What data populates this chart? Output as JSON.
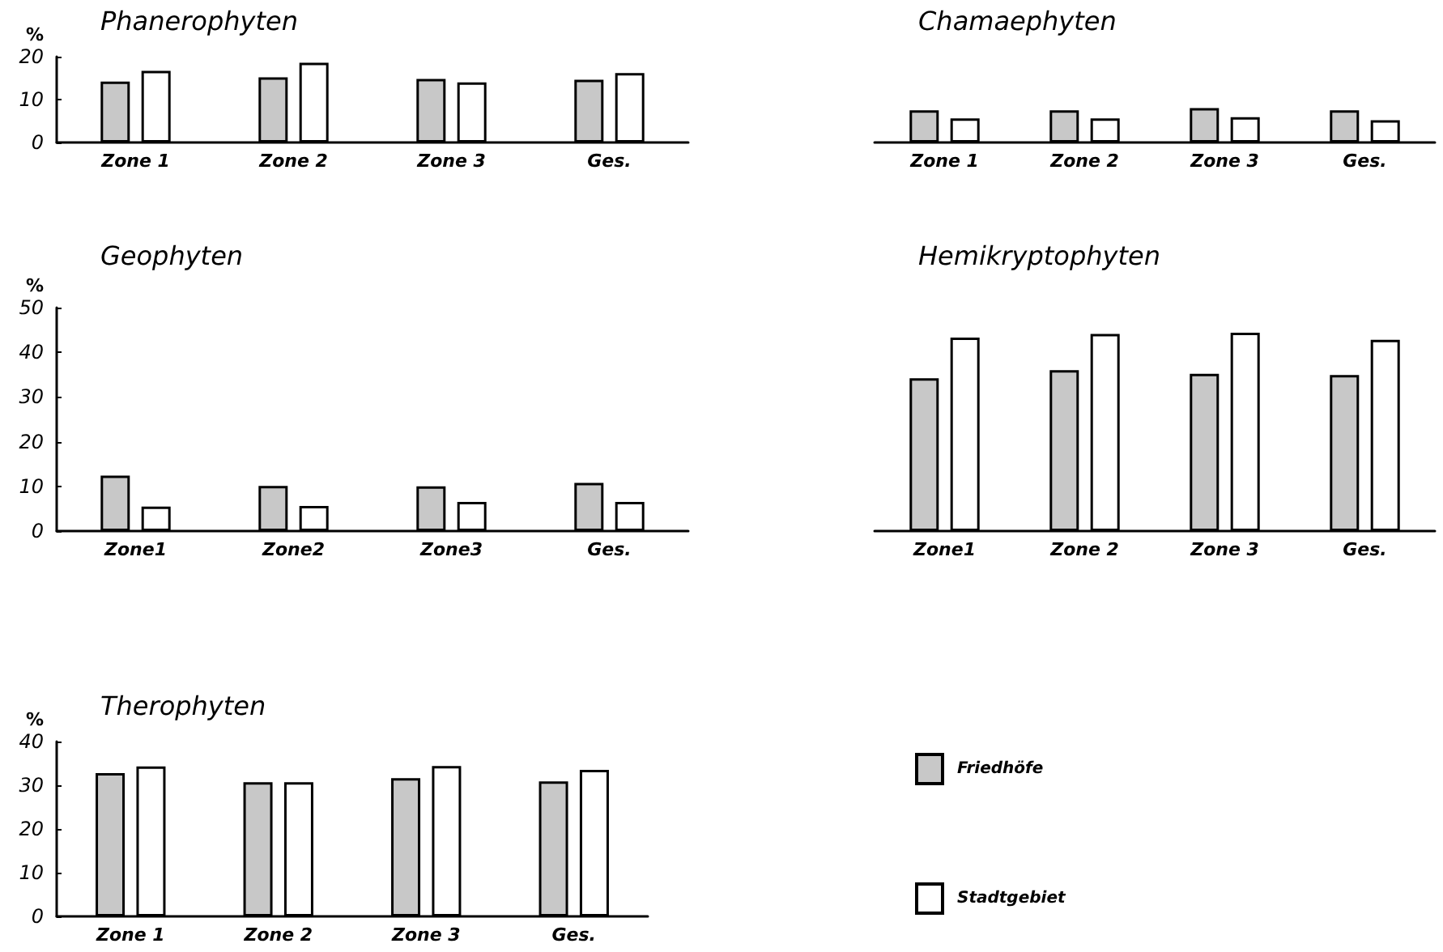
{
  "chart_data": [
    {
      "type": "bar",
      "title": "Phanerophyten",
      "ylabel": "%",
      "categories": [
        "Zone 1",
        "Zone 2",
        "Zone 3",
        "Ges."
      ],
      "ylim": [
        0,
        20
      ],
      "yticks": [
        0,
        10,
        20
      ],
      "series": [
        {
          "color": "#c8c8c8",
          "values": [
            14.2,
            15.2,
            14.8,
            14.6
          ]
        },
        {
          "color": "#ffffff",
          "values": [
            16.7,
            18.6,
            14.0,
            16.2
          ]
        }
      ]
    },
    {
      "type": "bar",
      "title": "Chamaephyten",
      "categories": [
        "Zone 1",
        "Zone 2",
        "Zone 3",
        "Ges."
      ],
      "ylim": [
        0,
        20
      ],
      "yticks": [
        0,
        10,
        20
      ],
      "tick_labels": "x",
      "series": [
        {
          "color": "#c8c8c8",
          "values": [
            7.5,
            7.5,
            8.0,
            7.5
          ]
        },
        {
          "color": "#ffffff",
          "values": [
            5.6,
            5.6,
            5.9,
            5.2
          ]
        }
      ]
    },
    {
      "type": "bar",
      "title": "Geophyten",
      "ylabel": "%",
      "categories": [
        "Zone1",
        "Zone2",
        "Zone3",
        "Ges."
      ],
      "ylim": [
        0,
        50
      ],
      "yticks": [
        0,
        10,
        20,
        30,
        40,
        50
      ],
      "series": [
        {
          "color": "#c8c8c8",
          "values": [
            12.4,
            10.1,
            10.0,
            10.8
          ]
        },
        {
          "color": "#ffffff",
          "values": [
            5.5,
            5.6,
            6.5,
            6.5
          ]
        }
      ]
    },
    {
      "type": "bar",
      "title": "Hemikryptophyten",
      "categories": [
        "Zone1",
        "Zone 2",
        "Zone 3",
        "Ges."
      ],
      "ylim": [
        0,
        50
      ],
      "yticks": [
        0,
        10,
        20,
        30,
        40,
        50
      ],
      "tick_labels": "x",
      "series": [
        {
          "color": "#c8c8c8",
          "values": [
            34.2,
            36.0,
            35.2,
            34.9
          ]
        },
        {
          "color": "#ffffff",
          "values": [
            43.3,
            44.1,
            44.4,
            42.8
          ]
        }
      ]
    },
    {
      "type": "bar",
      "title": "Therophyten",
      "ylabel": "%",
      "categories": [
        "Zone 1",
        "Zone 2",
        "Zone 3",
        "Ges."
      ],
      "ylim": [
        0,
        40
      ],
      "yticks": [
        0,
        10,
        20,
        30,
        40
      ],
      "legend": "right",
      "series": [
        {
          "name": "Friedhöfe",
          "color": "#c8c8c8",
          "values": [
            32.8,
            30.7,
            31.6,
            30.9
          ]
        },
        {
          "name": "Stadtgebiet",
          "color": "#ffffff",
          "values": [
            34.3,
            30.7,
            34.4,
            33.5
          ]
        }
      ]
    }
  ]
}
